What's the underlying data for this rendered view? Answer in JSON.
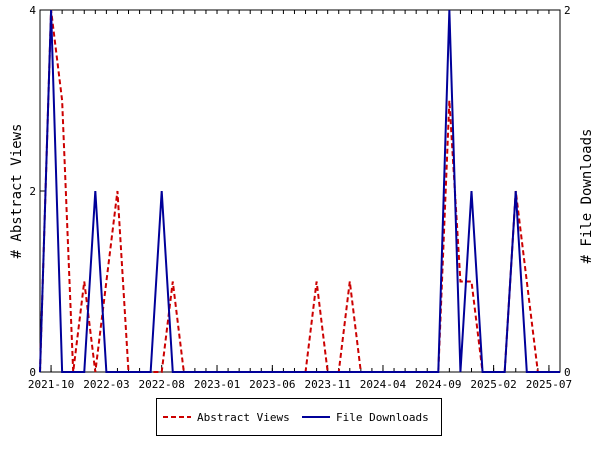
{
  "chart_data": {
    "type": "line",
    "x": [
      "2021-09",
      "2021-10",
      "2021-11",
      "2021-12",
      "2022-01",
      "2022-02",
      "2022-03",
      "2022-04",
      "2022-05",
      "2022-06",
      "2022-07",
      "2022-08",
      "2022-09",
      "2022-10",
      "2022-11",
      "2022-12",
      "2023-01",
      "2023-02",
      "2023-03",
      "2023-04",
      "2023-05",
      "2023-06",
      "2023-07",
      "2023-08",
      "2023-09",
      "2023-10",
      "2023-11",
      "2023-12",
      "2024-01",
      "2024-02",
      "2024-03",
      "2024-04",
      "2024-05",
      "2024-06",
      "2024-07",
      "2024-08",
      "2024-09",
      "2024-10",
      "2024-11",
      "2024-12",
      "2025-01",
      "2025-02",
      "2025-03",
      "2025-04",
      "2025-05",
      "2025-06",
      "2025-07",
      "2025-08"
    ],
    "x_tick_labels": [
      "2021-10",
      "2022-03",
      "2022-08",
      "2023-01",
      "2023-06",
      "2023-11",
      "2024-04",
      "2024-09",
      "2025-02",
      "2025-07"
    ],
    "series": [
      {
        "name": "Abstract Views",
        "axis": "left",
        "color": "#cc0000",
        "style": "dashed",
        "values": [
          0,
          4,
          3,
          0,
          1,
          0,
          1,
          2,
          0,
          0,
          0,
          0,
          1,
          0,
          0,
          0,
          0,
          0,
          0,
          0,
          0,
          0,
          0,
          0,
          0,
          1,
          0,
          0,
          1,
          0,
          0,
          0,
          0,
          0,
          0,
          0,
          0,
          3,
          1,
          1,
          0,
          0,
          0,
          2,
          1,
          0,
          0,
          0
        ]
      },
      {
        "name": "File Downloads",
        "axis": "right",
        "color": "#000099",
        "style": "solid",
        "values": [
          0,
          2,
          0,
          0,
          0,
          1,
          0,
          0,
          0,
          0,
          0,
          1,
          0,
          0,
          0,
          0,
          0,
          0,
          0,
          0,
          0,
          0,
          0,
          0,
          0,
          0,
          0,
          0,
          0,
          0,
          0,
          0,
          0,
          0,
          0,
          0,
          0,
          2,
          0,
          1,
          0,
          0,
          0,
          1,
          0,
          0,
          0,
          0
        ]
      }
    ],
    "ylabel_left": "# Abstract Views",
    "ylabel_right": "# File Downloads",
    "ylim_left": [
      0,
      4
    ],
    "ylim_right": [
      0,
      2
    ],
    "left_tick_labels": [
      "0",
      "2",
      "4"
    ],
    "right_tick_labels": [
      "0",
      "2"
    ],
    "grid": false,
    "legend_position": "bottom"
  }
}
